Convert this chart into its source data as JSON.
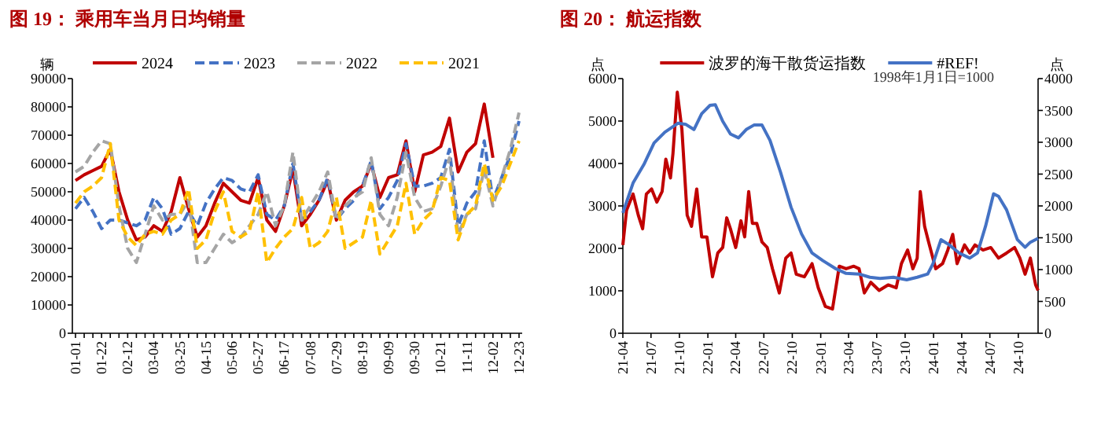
{
  "chart_data": [
    {
      "type": "line",
      "title": "图 19：  乘用车当月日均销量",
      "ylabel": "辆",
      "legend": "top",
      "categories": [
        "01-01",
        null,
        null,
        "01-22",
        null,
        null,
        "02-12",
        null,
        null,
        "03-04",
        null,
        null,
        "03-25",
        null,
        null,
        "04-15",
        null,
        null,
        "05-06",
        null,
        null,
        "05-27",
        null,
        null,
        "06-17",
        null,
        null,
        "07-08",
        null,
        null,
        "07-29",
        null,
        null,
        "08-19",
        null,
        null,
        "09-09",
        null,
        null,
        "09-30",
        null,
        null,
        "10-21",
        null,
        null,
        "11-11",
        null,
        null,
        "12-02",
        null,
        null,
        "12-23"
      ],
      "ylim": [
        0,
        90000
      ],
      "yticks": [
        0,
        10000,
        20000,
        30000,
        40000,
        50000,
        60000,
        70000,
        80000,
        90000
      ],
      "series": [
        {
          "name": "2024",
          "color": "#c00000",
          "line_style": "solid",
          "values": [
            54000,
            56000,
            57500,
            59000,
            65000,
            50000,
            40000,
            33000,
            34000,
            38000,
            36000,
            43000,
            55000,
            44000,
            34000,
            38000,
            46000,
            53000,
            50000,
            47000,
            46000,
            55000,
            40000,
            36000,
            45000,
            58000,
            38000,
            42000,
            47000,
            54000,
            40000,
            47000,
            50000,
            52000,
            60000,
            48000,
            55000,
            56000,
            68000,
            50000,
            63000,
            64000,
            66000,
            76000,
            57000,
            64000,
            67000,
            81000,
            62000,
            null,
            null,
            null
          ]
        },
        {
          "name": "2023",
          "color": "#4472c4",
          "line_style": "dashed",
          "values": [
            44000,
            48000,
            43000,
            37000,
            40000,
            40000,
            39000,
            38000,
            40000,
            48000,
            44000,
            35000,
            37000,
            43000,
            38000,
            46000,
            51000,
            55000,
            54000,
            51000,
            50000,
            56000,
            42000,
            40000,
            45000,
            60000,
            40000,
            43000,
            47000,
            55000,
            40000,
            44000,
            47000,
            52000,
            61000,
            44000,
            48000,
            54000,
            67000,
            52000,
            52000,
            53000,
            55000,
            65000,
            38000,
            46000,
            50000,
            68000,
            47000,
            55000,
            63000,
            75000
          ]
        },
        {
          "name": "2022",
          "color": "#a5a5a5",
          "line_style": "dashed",
          "values": [
            57000,
            59000,
            64000,
            68000,
            67000,
            45000,
            30000,
            25000,
            35000,
            45000,
            40000,
            42000,
            42000,
            47000,
            25000,
            25000,
            30000,
            35000,
            32000,
            34000,
            38000,
            42000,
            50000,
            38000,
            45000,
            64000,
            40000,
            45000,
            50000,
            57000,
            40000,
            45000,
            48000,
            50000,
            62000,
            42000,
            38000,
            48000,
            64000,
            48000,
            43000,
            44000,
            52000,
            62000,
            35000,
            42000,
            44000,
            58000,
            45000,
            55000,
            65000,
            78000
          ]
        },
        {
          "name": "2021",
          "color": "#ffc000",
          "line_style": "dashed",
          "values": [
            46000,
            50000,
            52000,
            55000,
            67000,
            40000,
            34000,
            31000,
            35000,
            36000,
            35000,
            40000,
            42000,
            51000,
            30000,
            33000,
            43000,
            50000,
            36000,
            34000,
            36000,
            50000,
            25000,
            30000,
            34000,
            37000,
            48000,
            30000,
            32000,
            36000,
            48000,
            30000,
            32000,
            34000,
            47000,
            28000,
            33000,
            38000,
            53000,
            35000,
            40000,
            43000,
            55000,
            54000,
            33000,
            42000,
            45000,
            60000,
            47000,
            52000,
            60000,
            68000
          ]
        }
      ]
    },
    {
      "type": "line",
      "title": "图 20：  航运指数",
      "ylabel": "点",
      "y2label": "点",
      "legend": "top",
      "annotations": [
        "1998年1月1日=1000"
      ],
      "xlim": [
        "2021-04-01",
        "2024-12-04"
      ],
      "xticks": [
        {
          "value": "2021-04-01",
          "label": "21-04"
        },
        {
          "value": "2021-07-01",
          "label": "21-07"
        },
        {
          "value": "2021-10-01",
          "label": "21-10"
        },
        {
          "value": "2022-01-01",
          "label": "22-01"
        },
        {
          "value": "2022-04-01",
          "label": "22-04"
        },
        {
          "value": "2022-07-01",
          "label": "22-07"
        },
        {
          "value": "2022-10-01",
          "label": "22-10"
        },
        {
          "value": "2023-01-01",
          "label": "23-01"
        },
        {
          "value": "2023-04-01",
          "label": "23-04"
        },
        {
          "value": "2023-07-01",
          "label": "23-07"
        },
        {
          "value": "2023-10-01",
          "label": "23-10"
        },
        {
          "value": "2024-01-01",
          "label": "24-01"
        },
        {
          "value": "2024-04-01",
          "label": "24-04"
        },
        {
          "value": "2024-07-01",
          "label": "24-07"
        },
        {
          "value": "2024-10-01",
          "label": "24-10"
        }
      ],
      "ylim": [
        0,
        6000
      ],
      "yticks": [
        0,
        1000,
        2000,
        3000,
        4000,
        5000,
        6000
      ],
      "y2lim": [
        0,
        4000
      ],
      "y2ticks": [
        0,
        500,
        1000,
        1500,
        2000,
        2500,
        3000,
        3500,
        4000
      ],
      "series": [
        {
          "name": "波罗的海干散货运指数",
          "color": "#c00000",
          "line_style": "solid",
          "x": [
            "2021-04-01",
            "2021-04-13",
            "2021-05-04",
            "2021-05-21",
            "2021-06-04",
            "2021-06-16",
            "2021-07-03",
            "2021-07-20",
            "2021-08-06",
            "2021-08-18",
            "2021-09-02",
            "2021-09-10",
            "2021-09-24",
            "2021-10-09",
            "2021-10-26",
            "2021-11-09",
            "2021-11-26",
            "2021-12-12",
            "2021-12-29",
            "2022-01-16",
            "2022-02-02",
            "2022-02-18",
            "2022-03-03",
            "2022-03-15",
            "2022-04-01",
            "2022-04-18",
            "2022-04-30",
            "2022-05-13",
            "2022-05-25",
            "2022-06-08",
            "2022-06-25",
            "2022-07-12",
            "2022-07-29",
            "2022-08-20",
            "2022-09-10",
            "2022-09-27",
            "2022-10-14",
            "2022-11-09",
            "2022-12-04",
            "2022-12-24",
            "2023-01-16",
            "2023-02-08",
            "2023-03-02",
            "2023-03-24",
            "2023-04-18",
            "2023-05-05",
            "2023-05-22",
            "2023-06-12",
            "2023-07-09",
            "2023-08-07",
            "2023-09-02",
            "2023-09-19",
            "2023-10-09",
            "2023-10-26",
            "2023-11-09",
            "2023-11-19",
            "2023-12-03",
            "2023-12-16",
            "2024-01-08",
            "2024-01-30",
            "2024-02-16",
            "2024-03-03",
            "2024-03-17",
            "2024-04-10",
            "2024-04-27",
            "2024-05-14",
            "2024-06-09",
            "2024-07-04",
            "2024-07-29",
            "2024-08-24",
            "2024-09-19",
            "2024-10-06",
            "2024-10-23",
            "2024-11-09",
            "2024-11-26",
            "2024-12-04"
          ],
          "values": [
            2080,
            2900,
            3280,
            2780,
            2460,
            3280,
            3400,
            3090,
            3340,
            4100,
            3660,
            4230,
            5680,
            4800,
            2780,
            2520,
            3400,
            2270,
            2270,
            1330,
            1890,
            2020,
            2720,
            2460,
            2020,
            2650,
            2270,
            3340,
            2590,
            2590,
            2150,
            2020,
            1520,
            950,
            1770,
            1890,
            1390,
            1330,
            1640,
            1070,
            630,
            570,
            1580,
            1520,
            1580,
            1520,
            950,
            1200,
            1010,
            1140,
            1070,
            1640,
            1960,
            1520,
            1770,
            3340,
            2520,
            2150,
            1520,
            1640,
            1960,
            2330,
            1640,
            2080,
            1890,
            2080,
            1960,
            2020,
            1770,
            1890,
            2020,
            1770,
            1390,
            1770,
            1140,
            1010
          ]
        },
        {
          "name": "#REF!",
          "color": "#4472c4",
          "line_style": "solid",
          "axis": "y2",
          "x": [
            "2021-04-01",
            "2021-05-04",
            "2021-06-08",
            "2021-07-11",
            "2021-08-15",
            "2021-09-27",
            "2021-10-22",
            "2021-11-17",
            "2021-12-12",
            "2022-01-08",
            "2022-01-25",
            "2022-02-18",
            "2022-03-15",
            "2022-04-10",
            "2022-05-05",
            "2022-05-30",
            "2022-06-25",
            "2022-07-21",
            "2022-08-24",
            "2022-09-27",
            "2022-10-31",
            "2022-12-04",
            "2023-01-08",
            "2023-02-20",
            "2023-03-24",
            "2023-05-05",
            "2023-06-09",
            "2023-07-12",
            "2023-08-24",
            "2023-10-06",
            "2023-11-09",
            "2023-12-13",
            "2023-12-30",
            "2024-01-25",
            "2024-02-20",
            "2024-03-24",
            "2024-04-27",
            "2024-05-22",
            "2024-06-17",
            "2024-07-13",
            "2024-07-29",
            "2024-08-24",
            "2024-09-28",
            "2024-10-23",
            "2024-11-09",
            "2024-12-04"
          ],
          "values": [
            1890,
            2360,
            2650,
            2990,
            3160,
            3300,
            3280,
            3200,
            3450,
            3580,
            3590,
            3330,
            3130,
            3070,
            3200,
            3270,
            3270,
            3030,
            2530,
            1980,
            1560,
            1260,
            1140,
            1010,
            940,
            930,
            880,
            860,
            880,
            840,
            880,
            930,
            1090,
            1470,
            1390,
            1260,
            1180,
            1260,
            1680,
            2190,
            2150,
            1940,
            1470,
            1350,
            1430,
            1490
          ]
        }
      ]
    }
  ]
}
